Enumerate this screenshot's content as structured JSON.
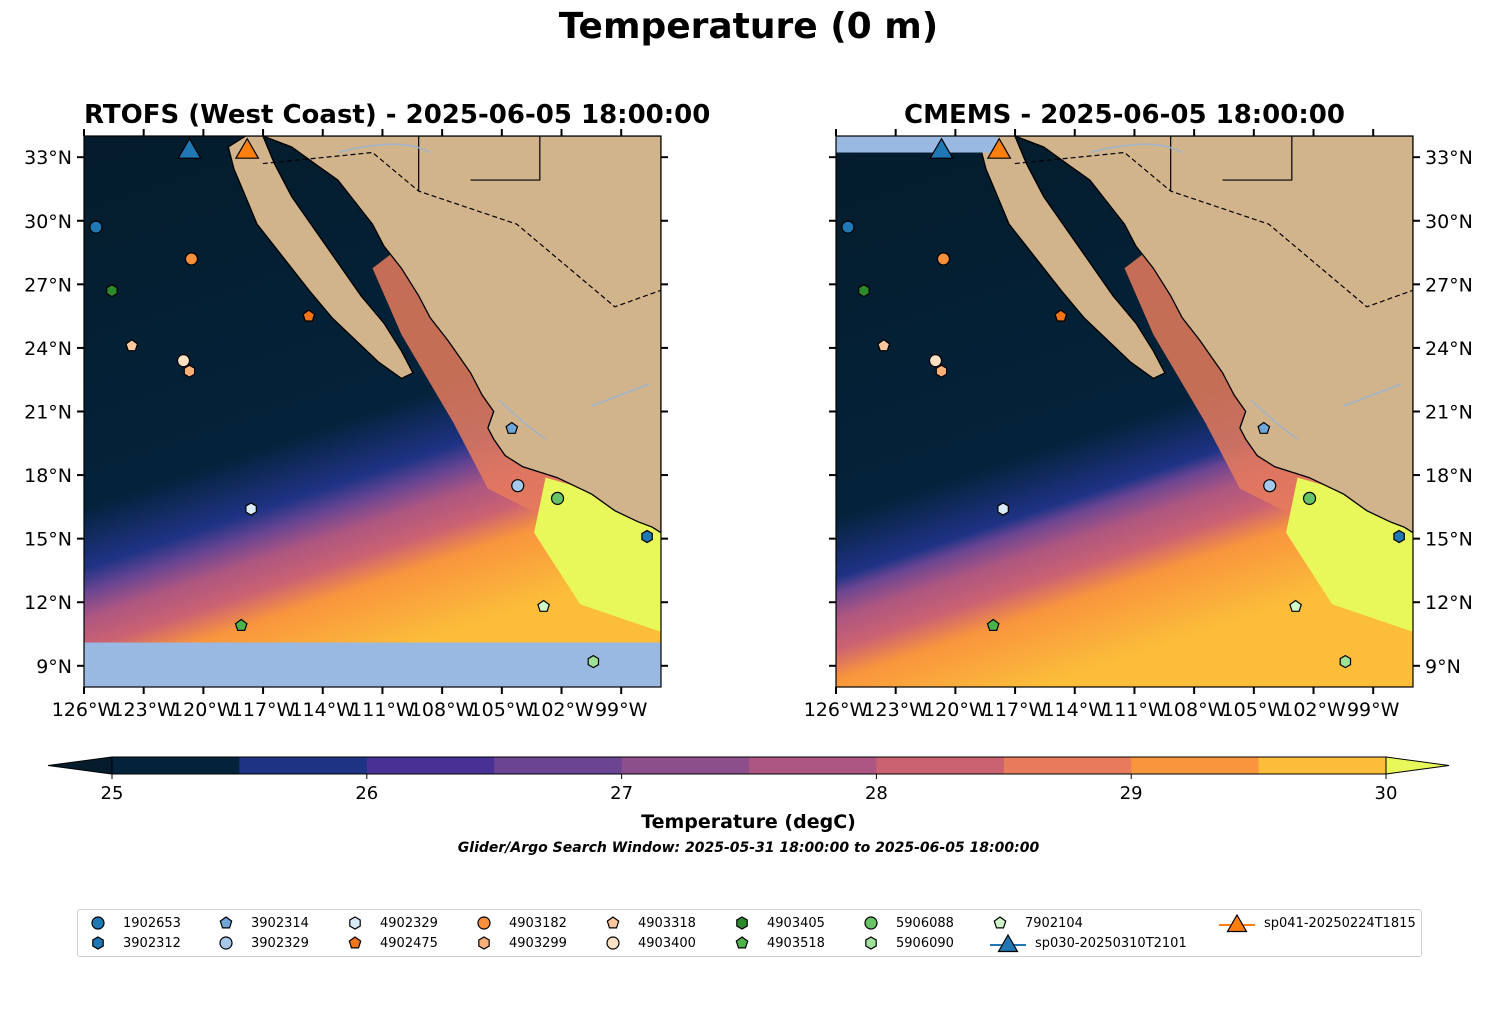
{
  "figure": {
    "title": "Temperature (0 m)",
    "panels": [
      {
        "title": "RTOFS (West Coast) - 2025-06-05 18:00:00",
        "ytick_side": "left"
      },
      {
        "title": "CMEMS - 2025-06-05 18:00:00",
        "ytick_side": "right"
      }
    ],
    "colorbar": {
      "label": "Temperature (degC)",
      "ticks": [
        "25",
        "26",
        "27",
        "28",
        "29",
        "30"
      ],
      "levels": [
        25,
        25.5,
        26,
        26.5,
        27,
        27.5,
        28,
        28.5,
        29,
        29.5,
        30
      ],
      "colors": [
        "#04223a",
        "#1f3385",
        "#493095",
        "#6c4592",
        "#8c4f8c",
        "#ad5681",
        "#cb6272",
        "#e87b5c",
        "#f9953d",
        "#fbbd3a"
      ],
      "under_color": "#041c2c",
      "over_color": "#e8f85a"
    },
    "search_window": "Glider/Argo Search Window: 2025-05-31 18:00:00 to 2025-06-05 18:00:00",
    "colors": {
      "land": "#d2b48c",
      "nodata": "#99b8e2",
      "rivers": "#9db5cc"
    }
  },
  "chart_data": {
    "type": "map",
    "lon_range": [
      -126,
      -97
    ],
    "lat_range": [
      8,
      34
    ],
    "xticks": [
      -126,
      -123,
      -120,
      -117,
      -114,
      -111,
      -108,
      -105,
      -102,
      -99
    ],
    "xtick_labels": [
      "126°W",
      "123°W",
      "120°W",
      "117°W",
      "114°W",
      "111°W",
      "108°W",
      "105°W",
      "102°W",
      "99°W"
    ],
    "yticks": [
      9,
      12,
      15,
      18,
      21,
      24,
      27,
      30,
      33
    ],
    "ytick_labels": [
      "9°N",
      "12°N",
      "15°N",
      "18°N",
      "21°N",
      "24°N",
      "27°N",
      "30°N",
      "33°N"
    ],
    "floats": [
      {
        "id": "1902653",
        "marker": "circle",
        "color": "#1f77b4",
        "lon": -125.4,
        "lat": 29.7
      },
      {
        "id": "3902312",
        "marker": "hexagon",
        "color": "#1f77b4",
        "lon": -97.7,
        "lat": 15.1
      },
      {
        "id": "3902314",
        "marker": "pentagon",
        "color": "#6ea6d8",
        "lon": -104.5,
        "lat": 20.2
      },
      {
        "id": "3902329",
        "marker": "circle",
        "color": "#a6c8ea",
        "lon": -104.2,
        "lat": 17.5
      },
      {
        "id": "4902329",
        "marker": "hexagon",
        "color": "#d9eaf9",
        "lon": -117.6,
        "lat": 16.4
      },
      {
        "id": "4902475",
        "marker": "pentagon",
        "color": "#f4741b",
        "lon": -114.7,
        "lat": 25.5
      },
      {
        "id": "4903182",
        "marker": "circle",
        "color": "#f78f3c",
        "lon": -120.6,
        "lat": 28.2
      },
      {
        "id": "4903299",
        "marker": "hexagon",
        "color": "#fbb077",
        "lon": -120.7,
        "lat": 22.9
      },
      {
        "id": "4903318",
        "marker": "pentagon",
        "color": "#fbc79c",
        "lon": -123.6,
        "lat": 24.1
      },
      {
        "id": "4903400",
        "marker": "circle",
        "color": "#fde1c4",
        "lon": -121.0,
        "lat": 23.4
      },
      {
        "id": "4903405",
        "marker": "hexagon",
        "color": "#2c8a2c",
        "lon": -124.6,
        "lat": 26.7
      },
      {
        "id": "4903518",
        "marker": "pentagon",
        "color": "#4db34d",
        "lon": -118.1,
        "lat": 10.9
      },
      {
        "id": "5906088",
        "marker": "circle",
        "color": "#66c466",
        "lon": -102.2,
        "lat": 16.9
      },
      {
        "id": "5906090",
        "marker": "hexagon",
        "color": "#9fe09b",
        "lon": -100.4,
        "lat": 9.2
      },
      {
        "id": "7902104",
        "marker": "pentagon",
        "color": "#d0f7c8",
        "lon": -102.9,
        "lat": 11.8
      }
    ],
    "gliders": [
      {
        "id": "sp030-20250310T2101",
        "marker": "triangle",
        "color": "#1f77b4",
        "lon": -120.7,
        "lat": 33.4
      },
      {
        "id": "sp041-20250224T1815",
        "marker": "triangle",
        "color": "#ff7f0e",
        "lon": -117.8,
        "lat": 33.4
      }
    ]
  }
}
